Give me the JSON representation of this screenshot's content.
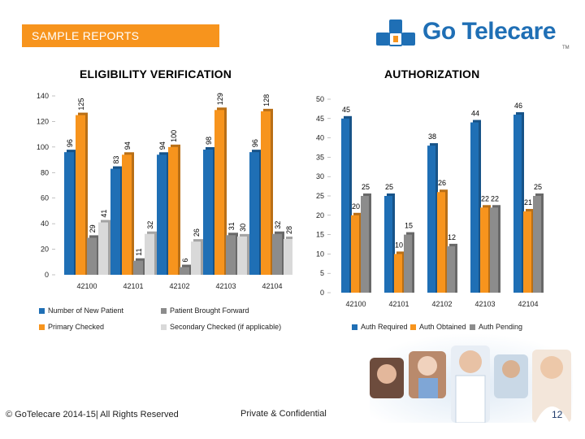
{
  "header": {
    "banner_label": "SAMPLE REPORTS",
    "logo_text": "Go Telecare",
    "logo_tm": "TM",
    "logo_mark_color": "#1f6fb5",
    "banner_color": "#f7941d"
  },
  "footer": {
    "copyright": "© GoTelecare 2014-15| All Rights Reserved",
    "confidential": "Private & Confidential",
    "page_number": "12"
  },
  "decor": {
    "people_photos": "photo-collage-of-patients-and-doctor"
  },
  "chart_data": [
    {
      "type": "bar",
      "title": "ELIGIBILITY VERIFICATION",
      "categories": [
        "42100",
        "42101",
        "42102",
        "42103",
        "42104"
      ],
      "series": [
        {
          "name": "Number of New Patient",
          "color": "#1f6fb5",
          "values": [
            96,
            83,
            94,
            98,
            96
          ]
        },
        {
          "name": "Primary Checked",
          "color": "#f7941d",
          "values": [
            125,
            94,
            100,
            129,
            128
          ]
        },
        {
          "name": "Patient Brought Forward",
          "color": "#8c8c8c",
          "values": [
            29,
            11,
            6,
            31,
            32
          ]
        },
        {
          "name": "Secondary Checked (if applicable)",
          "color": "#d9d9d9",
          "values": [
            41,
            32,
            26,
            30,
            28
          ]
        }
      ],
      "ylim": [
        0,
        140
      ],
      "yticks": [
        0,
        20,
        40,
        60,
        80,
        100,
        120,
        140
      ],
      "legend": "bottom",
      "grid": false
    },
    {
      "type": "bar",
      "title": "AUTHORIZATION",
      "categories": [
        "42100",
        "42101",
        "42102",
        "42103",
        "42104"
      ],
      "series": [
        {
          "name": "Auth Required",
          "color": "#1f6fb5",
          "values": [
            45,
            25,
            38,
            44,
            46
          ]
        },
        {
          "name": "Auth Obtained",
          "color": "#f7941d",
          "values": [
            20,
            10,
            26,
            22,
            21
          ]
        },
        {
          "name": "Auth Pending",
          "color": "#8c8c8c",
          "values": [
            25,
            15,
            12,
            22,
            25
          ]
        }
      ],
      "ylim": [
        0,
        50
      ],
      "yticks": [
        0,
        5,
        10,
        15,
        20,
        25,
        30,
        35,
        40,
        45,
        50
      ],
      "legend": "bottom",
      "grid": false
    }
  ]
}
